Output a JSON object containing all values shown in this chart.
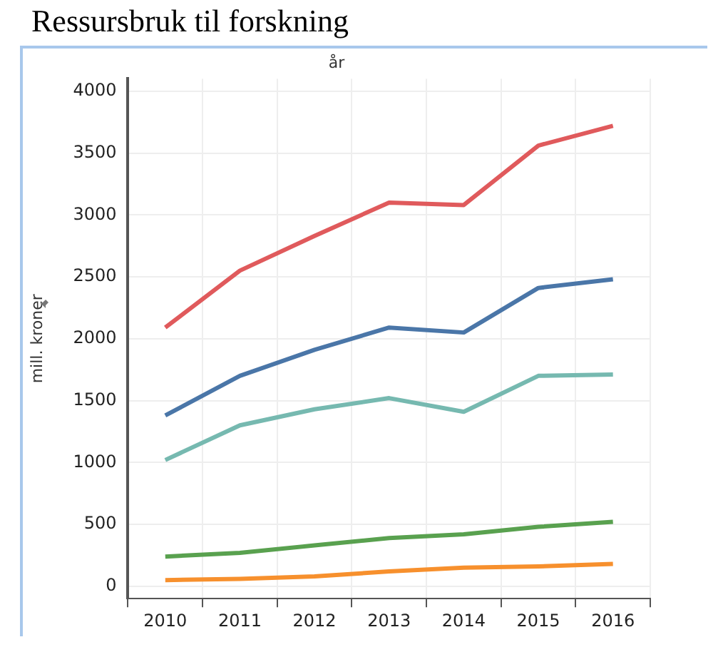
{
  "chart_data": {
    "type": "line",
    "title": "Ressursbruk til forskning",
    "xlabel": "år",
    "ylabel": "mill. kroner",
    "categories": [
      "2010",
      "2011",
      "2012",
      "2013",
      "2014",
      "2015",
      "2016"
    ],
    "series": [
      {
        "color": "#e05a5c",
        "values": [
          2090,
          2550,
          2830,
          3100,
          3080,
          3560,
          3720
        ]
      },
      {
        "color": "#4a76a8",
        "values": [
          1380,
          1700,
          1910,
          2090,
          2050,
          2410,
          2480
        ]
      },
      {
        "color": "#76b9b0",
        "values": [
          1020,
          1300,
          1430,
          1520,
          1410,
          1700,
          1710
        ]
      },
      {
        "color": "#59a14f",
        "values": [
          240,
          270,
          330,
          390,
          420,
          480,
          520
        ]
      },
      {
        "color": "#f7902d",
        "values": [
          50,
          60,
          80,
          120,
          150,
          160,
          180
        ]
      }
    ],
    "ylim": [
      -100,
      4100
    ],
    "yticks": [
      0,
      500,
      1000,
      1500,
      2000,
      2500,
      3000,
      3500,
      4000
    ],
    "grid": true,
    "legend": false,
    "marker": "none",
    "line_style": "solid"
  }
}
